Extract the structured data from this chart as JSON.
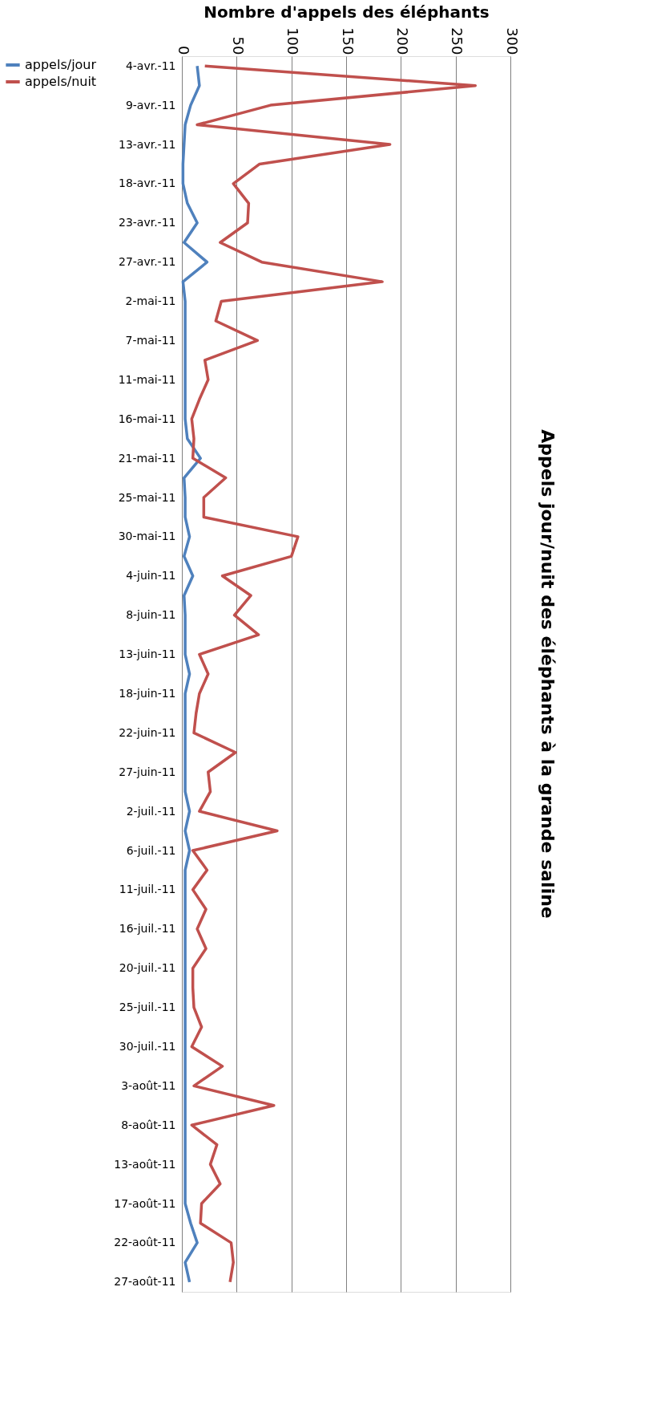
{
  "chart_data": {
    "type": "line",
    "orientation": "horizontal",
    "title": "Appels jour/nuit des éléphants à la grande saline",
    "xlabel": "Nombre d'appels des éléphants",
    "categories": [
      "4-avr.-11",
      null,
      "9-avr.-11",
      null,
      "13-avr.-11",
      null,
      "18-avr.-11",
      null,
      "23-avr.-11",
      null,
      "27-avr.-11",
      null,
      "2-mai-11",
      null,
      "7-mai-11",
      null,
      "11-mai-11",
      null,
      "16-mai-11",
      null,
      "21-mai-11",
      null,
      "25-mai-11",
      null,
      "30-mai-11",
      null,
      "4-juin-11",
      null,
      "8-juin-11",
      null,
      "13-juin-11",
      null,
      "18-juin-11",
      null,
      "22-juin-11",
      null,
      "27-juin-11",
      null,
      "2-juil.-11",
      null,
      "6-juil.-11",
      null,
      "11-juil.-11",
      null,
      "16-juil.-11",
      null,
      "20-juil.-11",
      null,
      "25-juil.-11",
      null,
      "30-juil.-11",
      null,
      "3-août-11",
      null,
      "8-août-11",
      null,
      "13-août-11",
      null,
      "17-août-11",
      null,
      "22-août-11",
      null,
      "27-août-11"
    ],
    "series": [
      {
        "name": "appels/jour",
        "color": "#4f81bd",
        "values": [
          14,
          16,
          8,
          3,
          2,
          1,
          1,
          5,
          14,
          2,
          23,
          1,
          3,
          3,
          3,
          3,
          3,
          3,
          3,
          5,
          17,
          2,
          3,
          3,
          7,
          2,
          10,
          2,
          3,
          3,
          3,
          7,
          3,
          3,
          3,
          3,
          3,
          3,
          7,
          3,
          7,
          3,
          3,
          3,
          3,
          3,
          3,
          3,
          3,
          3,
          3,
          3,
          3,
          3,
          3,
          3,
          3,
          3,
          3,
          8,
          14,
          3,
          7
        ]
      },
      {
        "name": "appels/nuit",
        "color": "#c0504d",
        "values": [
          21,
          268,
          81,
          14,
          190,
          71,
          47,
          61,
          60,
          35,
          73,
          183,
          36,
          31,
          69,
          21,
          24,
          16,
          9,
          11,
          10,
          40,
          20,
          20,
          106,
          100,
          37,
          63,
          48,
          70,
          16,
          24,
          16,
          13,
          11,
          49,
          24,
          26,
          16,
          87,
          10,
          23,
          10,
          22,
          14,
          22,
          10,
          10,
          11,
          18,
          9,
          37,
          11,
          84,
          9,
          32,
          26,
          35,
          18,
          17,
          45,
          47,
          44
        ]
      }
    ],
    "xlim": [
      0,
      300
    ],
    "xticks": [
      0,
      50,
      100,
      150,
      200,
      250,
      300
    ],
    "grid": "x",
    "legend": "left"
  }
}
